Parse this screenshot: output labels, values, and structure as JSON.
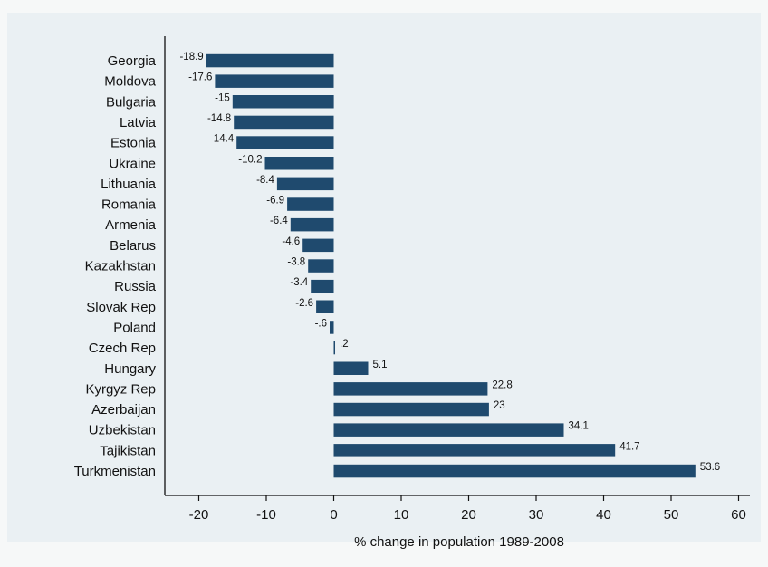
{
  "chart_data": {
    "type": "bar",
    "orientation": "horizontal",
    "categories": [
      "Georgia",
      "Moldova",
      "Bulgaria",
      "Latvia",
      "Estonia",
      "Ukraine",
      "Lithuania",
      "Romania",
      "Armenia",
      "Belarus",
      "Kazakhstan",
      "Russia",
      "Slovak Rep",
      "Poland",
      "Czech Rep",
      "Hungary",
      "Kyrgyz Rep",
      "Azerbaijan",
      "Uzbekistan",
      "Tajikistan",
      "Turkmenistan"
    ],
    "values": [
      -18.9,
      -17.6,
      -15,
      -14.8,
      -14.4,
      -10.2,
      -8.4,
      -6.9,
      -6.4,
      -4.6,
      -3.8,
      -3.4,
      -2.6,
      -0.6,
      0.2,
      5.1,
      22.8,
      23,
      34.1,
      41.7,
      53.6
    ],
    "data_labels": [
      "-18.9",
      "-17.6",
      "-15",
      "-14.8",
      "-14.4",
      "-10.2",
      "-8.4",
      "-6.9",
      "-6.4",
      "-4.6",
      "-3.8",
      "-3.4",
      "-2.6",
      "-.6",
      ".2",
      "5.1",
      "22.8",
      "23",
      "34.1",
      "41.7",
      "53.6"
    ],
    "xticks": [
      -20,
      -10,
      0,
      10,
      20,
      30,
      40,
      50,
      60
    ],
    "xtick_labels": [
      "-20",
      "-10",
      "0",
      "10",
      "20",
      "30",
      "40",
      "50",
      "60"
    ],
    "xlim": [
      -25,
      60
    ],
    "xlabel": "% change in population 1989-2008",
    "ylabel": "",
    "title": "",
    "grid": false,
    "bar_color": "#1f4a6e",
    "background_color": "#eaf0f3"
  }
}
